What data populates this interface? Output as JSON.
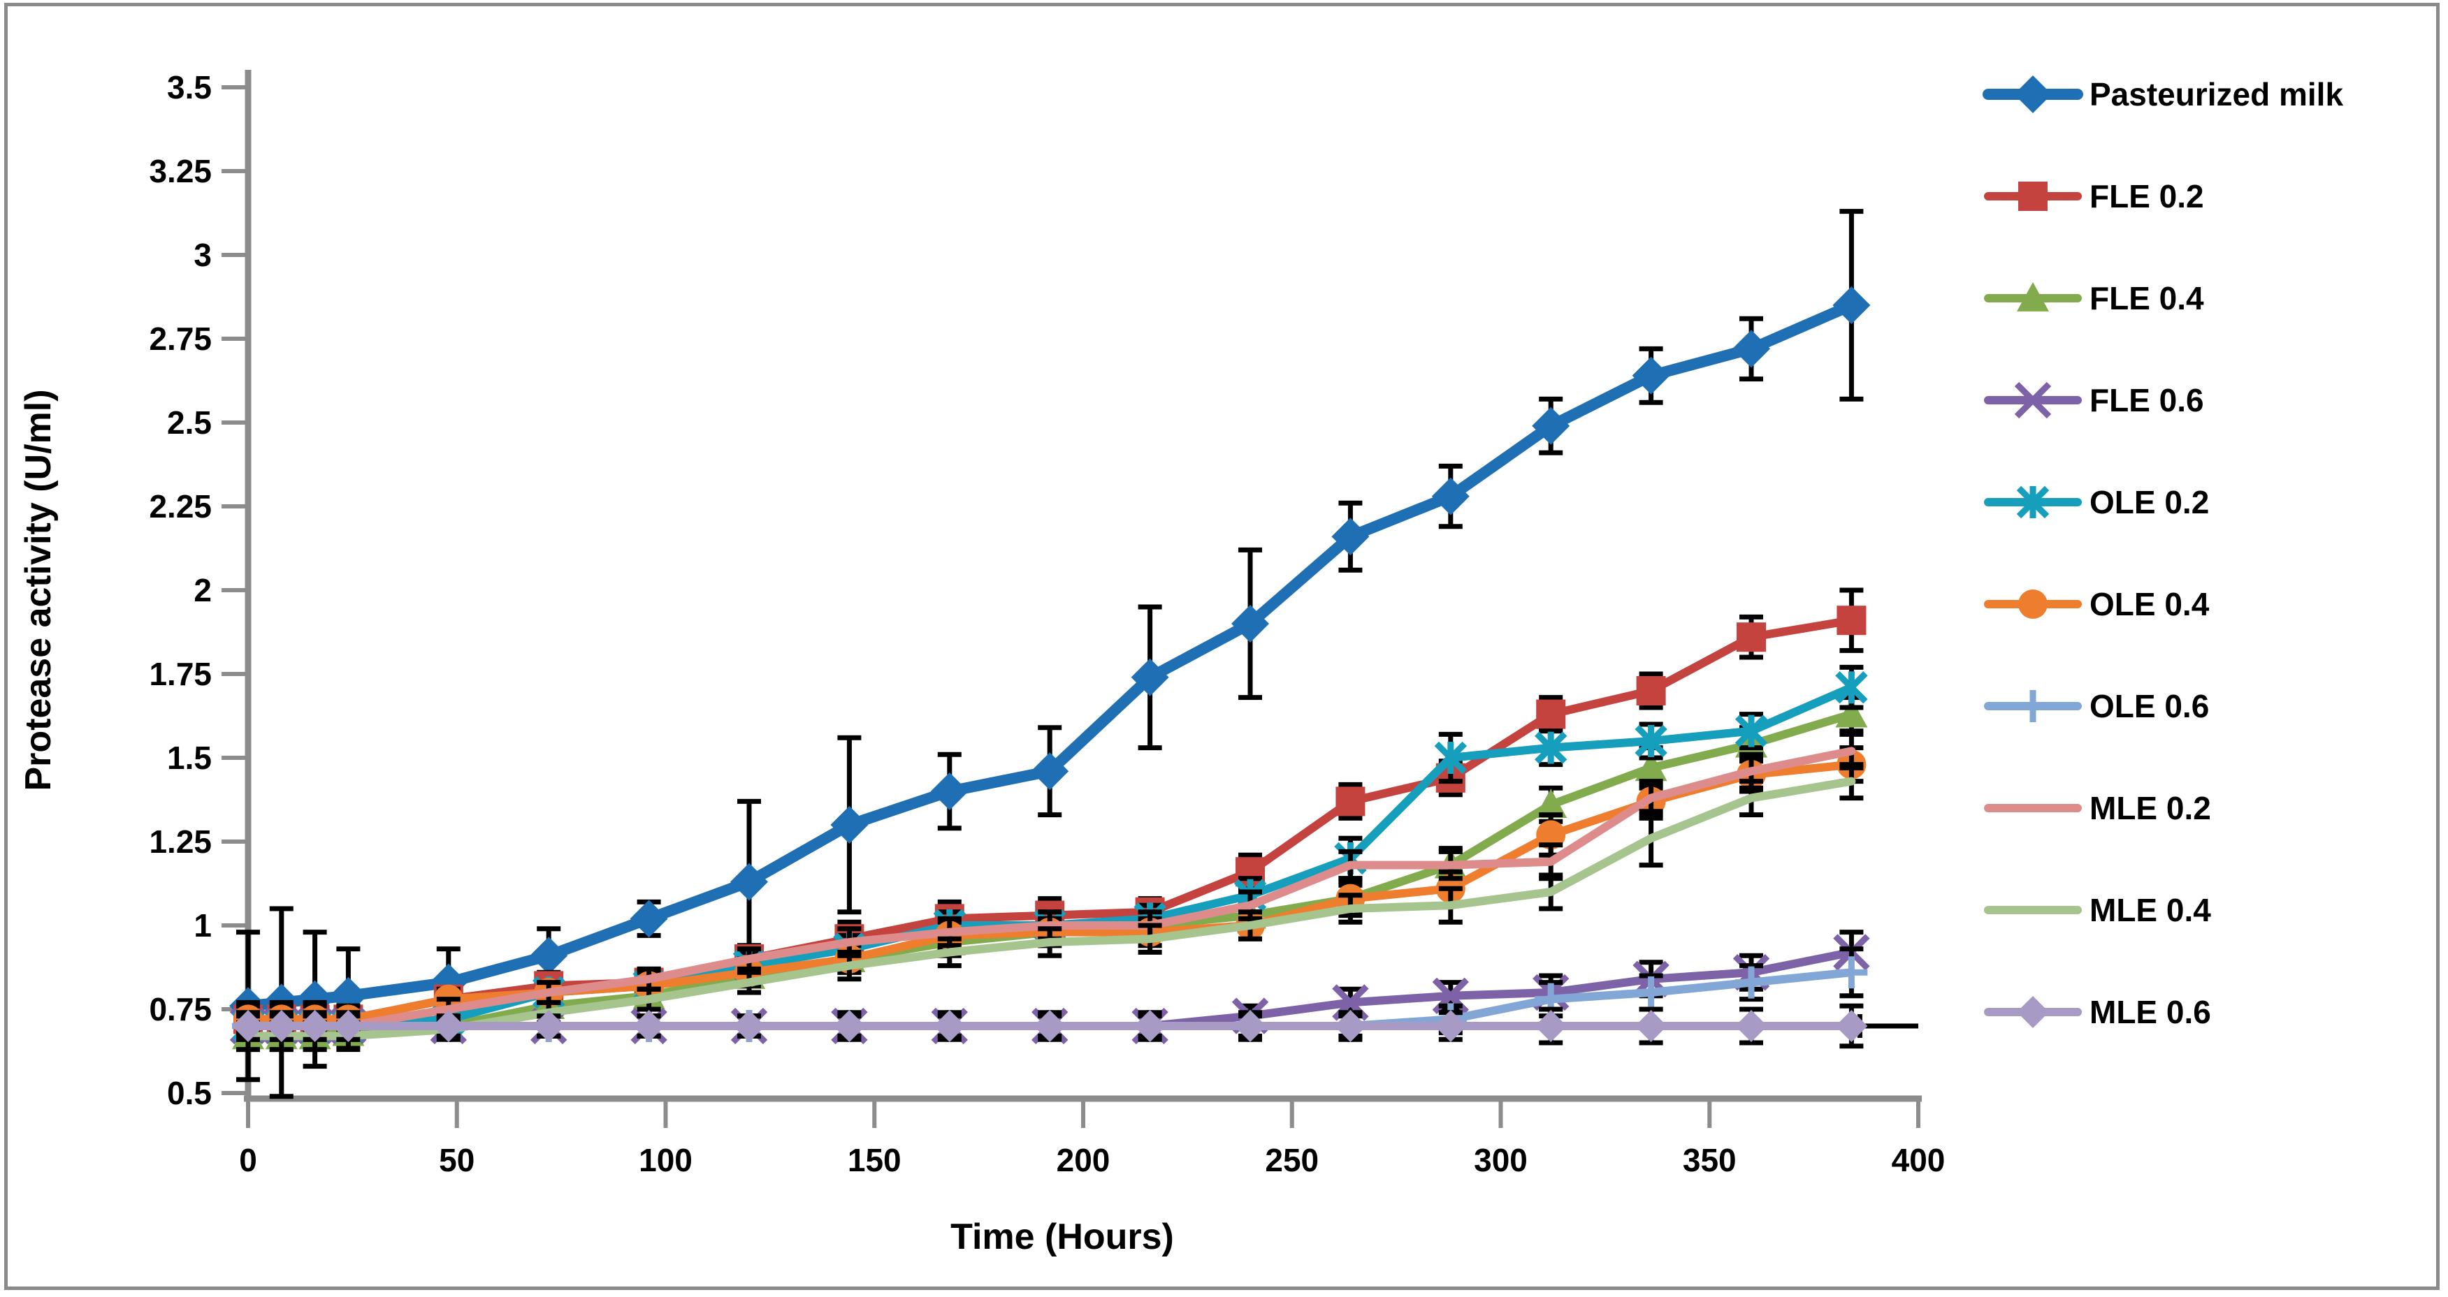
{
  "figure": {
    "description": "Line chart of protease activity in milk samples during storage",
    "background_color": "#ffffff",
    "frame_color": "#8a8a8a"
  },
  "chart_data": {
    "type": "line",
    "title": "",
    "xlabel": "Time (Hours)",
    "ylabel": "Protease activity  (U/ml)",
    "xlim": [
      0,
      400
    ],
    "ylim": [
      0.5,
      3.5
    ],
    "x_tick_labels": [
      "0",
      "50",
      "100",
      "150",
      "200",
      "250",
      "300",
      "350",
      "400"
    ],
    "x_tick_values": [
      0,
      50,
      100,
      150,
      200,
      250,
      300,
      350,
      400
    ],
    "y_tick_labels": [
      "0.5",
      "0.75",
      "1",
      "1.25",
      "1.5",
      "1.75",
      "2",
      "2.25",
      "2.5",
      "2.75",
      "3",
      "3.25",
      "3.5"
    ],
    "y_tick_values": [
      0.5,
      0.75,
      1,
      1.25,
      1.5,
      1.75,
      2,
      2.25,
      2.5,
      2.75,
      3,
      3.25,
      3.5
    ],
    "grid": false,
    "legend_position": "right",
    "axis_color": "#8c8c8c",
    "error_bar_color": "#000000",
    "x": [
      0,
      8,
      16,
      24,
      48,
      72,
      96,
      120,
      144,
      168,
      192,
      216,
      240,
      264,
      288,
      312,
      336,
      360,
      384
    ],
    "series": [
      {
        "name": "Pasteurized milk",
        "color": "#1f6fb4",
        "marker": "diamond",
        "values": [
          0.76,
          0.77,
          0.78,
          0.79,
          0.83,
          0.91,
          1.02,
          1.13,
          1.3,
          1.4,
          1.46,
          1.74,
          1.9,
          2.16,
          2.28,
          2.49,
          2.64,
          2.72,
          2.85
        ],
        "errors": [
          0.22,
          0.28,
          0.2,
          0.14,
          0.1,
          0.08,
          0.05,
          0.24,
          0.26,
          0.11,
          0.13,
          0.21,
          0.22,
          0.1,
          0.09,
          0.08,
          0.08,
          0.09,
          0.28
        ]
      },
      {
        "name": "FLE 0.2",
        "color": "#c5433e",
        "marker": "square",
        "values": [
          0.72,
          0.72,
          0.72,
          0.72,
          0.78,
          0.82,
          0.83,
          0.9,
          0.96,
          1.02,
          1.03,
          1.04,
          1.16,
          1.37,
          1.44,
          1.63,
          1.7,
          1.86,
          1.91
        ],
        "errors": [
          0.05,
          0.05,
          0.05,
          0.04,
          0.03,
          0.04,
          0.04,
          0.04,
          0.05,
          0.05,
          0.05,
          0.04,
          0.05,
          0.05,
          0.05,
          0.05,
          0.05,
          0.06,
          0.09
        ]
      },
      {
        "name": "FLE 0.4",
        "color": "#82ab4e",
        "marker": "triangle",
        "values": [
          0.67,
          0.67,
          0.67,
          0.68,
          0.7,
          0.76,
          0.79,
          0.85,
          0.9,
          0.95,
          0.98,
          1.0,
          1.03,
          1.08,
          1.18,
          1.36,
          1.47,
          1.54,
          1.63
        ],
        "errors": [
          0.04,
          0.04,
          0.04,
          0.04,
          0.03,
          0.03,
          0.03,
          0.03,
          0.04,
          0.04,
          0.04,
          0.04,
          0.04,
          0.04,
          0.05,
          0.05,
          0.06,
          0.05,
          0.05
        ]
      },
      {
        "name": "FLE 0.6",
        "color": "#7d62a8",
        "marker": "x",
        "values": [
          0.7,
          0.7,
          0.7,
          0.7,
          0.7,
          0.7,
          0.7,
          0.7,
          0.7,
          0.7,
          0.7,
          0.7,
          0.73,
          0.77,
          0.79,
          0.8,
          0.84,
          0.86,
          0.92
        ],
        "errors": [
          0.03,
          0.03,
          0.03,
          0.03,
          0.03,
          0.03,
          0.03,
          0.03,
          0.03,
          0.03,
          0.03,
          0.03,
          0.03,
          0.04,
          0.04,
          0.05,
          0.05,
          0.05,
          0.06
        ]
      },
      {
        "name": "OLE 0.2",
        "color": "#169fbc",
        "marker": "asterisk",
        "values": [
          0.7,
          0.7,
          0.7,
          0.7,
          0.72,
          0.8,
          0.82,
          0.88,
          0.93,
          1.0,
          1.0,
          1.02,
          1.09,
          1.2,
          1.5,
          1.53,
          1.55,
          1.58,
          1.71
        ],
        "errors": [
          0.04,
          0.04,
          0.04,
          0.04,
          0.03,
          0.03,
          0.04,
          0.04,
          0.04,
          0.04,
          0.04,
          0.04,
          0.05,
          0.06,
          0.07,
          0.05,
          0.05,
          0.05,
          0.06
        ]
      },
      {
        "name": "OLE 0.4",
        "color": "#ee7d2e",
        "marker": "circle",
        "values": [
          0.72,
          0.72,
          0.72,
          0.72,
          0.78,
          0.8,
          0.82,
          0.86,
          0.9,
          0.97,
          0.98,
          0.98,
          1.0,
          1.08,
          1.11,
          1.27,
          1.37,
          1.45,
          1.48
        ],
        "errors": [
          0.04,
          0.04,
          0.04,
          0.04,
          0.03,
          0.03,
          0.04,
          0.04,
          0.04,
          0.04,
          0.04,
          0.04,
          0.04,
          0.05,
          0.05,
          0.06,
          0.05,
          0.05,
          0.05
        ]
      },
      {
        "name": "OLE 0.6",
        "color": "#82a7d6",
        "marker": "plus",
        "values": [
          0.7,
          0.7,
          0.7,
          0.7,
          0.7,
          0.7,
          0.7,
          0.7,
          0.7,
          0.7,
          0.7,
          0.7,
          0.7,
          0.7,
          0.72,
          0.78,
          0.8,
          0.83,
          0.86
        ],
        "errors": [
          0.03,
          0.03,
          0.03,
          0.03,
          0.03,
          0.03,
          0.03,
          0.03,
          0.03,
          0.03,
          0.03,
          0.03,
          0.03,
          0.03,
          0.04,
          0.05,
          0.05,
          0.05,
          0.07
        ]
      },
      {
        "name": "MLE 0.2",
        "color": "#de8b8b",
        "marker": "none",
        "values": [
          0.7,
          0.7,
          0.7,
          0.7,
          0.75,
          0.8,
          0.84,
          0.9,
          0.95,
          0.98,
          1.0,
          1.0,
          1.06,
          1.18,
          1.18,
          1.19,
          1.38,
          1.46,
          1.52
        ],
        "errors": [
          0.03,
          0.03,
          0.03,
          0.03,
          0.03,
          0.03,
          0.03,
          0.03,
          0.04,
          0.04,
          0.04,
          0.04,
          0.04,
          0.04,
          0.04,
          0.05,
          0.05,
          0.05,
          0.05
        ]
      },
      {
        "name": "MLE 0.4",
        "color": "#a6c48d",
        "marker": "none",
        "values": [
          0.67,
          0.67,
          0.67,
          0.67,
          0.69,
          0.74,
          0.78,
          0.83,
          0.88,
          0.92,
          0.95,
          0.96,
          1.0,
          1.05,
          1.06,
          1.1,
          1.26,
          1.38,
          1.43
        ],
        "errors": [
          0.04,
          0.04,
          0.04,
          0.04,
          0.03,
          0.03,
          0.03,
          0.03,
          0.04,
          0.04,
          0.04,
          0.04,
          0.04,
          0.04,
          0.05,
          0.05,
          0.08,
          0.05,
          0.05
        ]
      },
      {
        "name": "MLE 0.6",
        "color": "#a79bc6",
        "marker": "diamond",
        "values": [
          0.7,
          0.7,
          0.7,
          0.7,
          0.7,
          0.7,
          0.7,
          0.7,
          0.7,
          0.7,
          0.7,
          0.7,
          0.7,
          0.7,
          0.7,
          0.7,
          0.7,
          0.7,
          0.7
        ],
        "errors": [
          0.04,
          0.04,
          0.04,
          0.04,
          0.03,
          0.03,
          0.03,
          0.03,
          0.04,
          0.04,
          0.04,
          0.04,
          0.04,
          0.04,
          0.04,
          0.05,
          0.05,
          0.05,
          0.06
        ],
        "x_error_right_hours": 16
      }
    ]
  }
}
